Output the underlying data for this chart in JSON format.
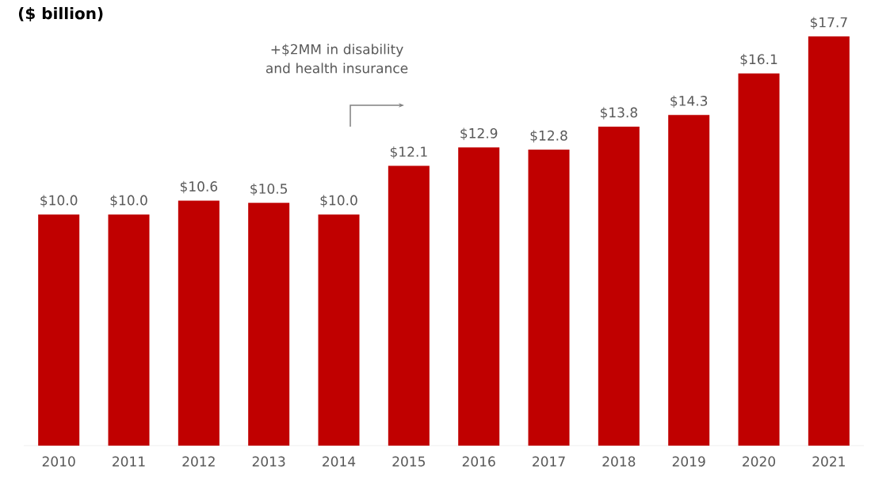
{
  "chart_data": {
    "type": "bar",
    "title": "($ billion)",
    "categories": [
      "2010",
      "2011",
      "2012",
      "2013",
      "2014",
      "2015",
      "2016",
      "2017",
      "2018",
      "2019",
      "2020",
      "2021"
    ],
    "values": [
      10.0,
      10.0,
      10.6,
      10.5,
      10.0,
      12.1,
      12.9,
      12.8,
      13.8,
      14.3,
      16.1,
      17.7
    ],
    "value_labels": [
      "$10.0",
      "$10.0",
      "$10.6",
      "$10.5",
      "$10.0",
      "$12.1",
      "$12.9",
      "$12.8",
      "$13.8",
      "$14.3",
      "$16.1",
      "$17.7"
    ],
    "color": "#c00000",
    "annotations": [
      "+$2MM in disability and health insurance"
    ]
  }
}
